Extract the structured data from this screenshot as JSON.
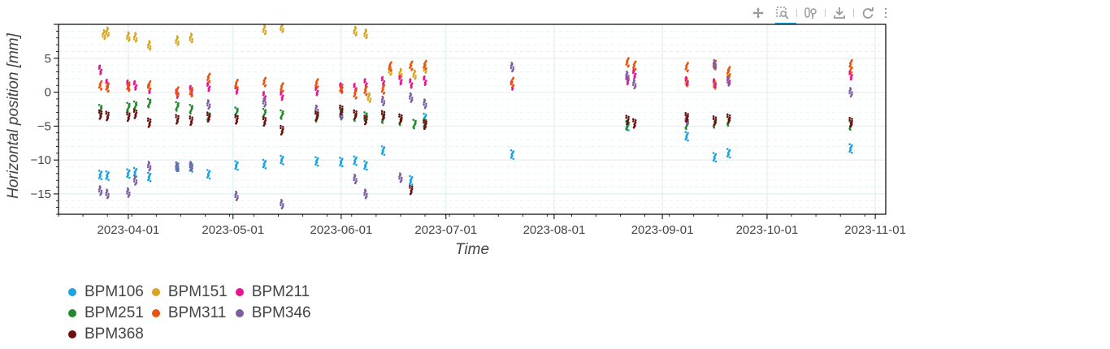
{
  "toolbar": {
    "tools": [
      {
        "name": "pan-tool",
        "icon": "move-icon"
      },
      {
        "name": "box-zoom-tool",
        "icon": "box-zoom-icon",
        "active": true
      },
      {
        "name": "wheel-zoom-tool",
        "icon": "wheel-zoom-icon"
      },
      {
        "name": "save-tool",
        "icon": "download-icon"
      },
      {
        "name": "reset-tool",
        "icon": "reset-icon"
      }
    ],
    "menu_icon": "more-icon"
  },
  "chart_data": {
    "type": "scatter",
    "title": "",
    "xlabel": "Time",
    "ylabel": "Horizontal position [mm]",
    "xlim": [
      "2023-03-12",
      "2023-11-04"
    ],
    "ylim": [
      -18,
      10
    ],
    "x_ticks": [
      "2023-04-01",
      "2023-05-01",
      "2023-06-01",
      "2023-07-01",
      "2023-08-01",
      "2023-09-01",
      "2023-10-01",
      "2023-11-01"
    ],
    "y_ticks": [
      -15,
      -10,
      -5,
      0,
      5
    ],
    "y_tick_labels": [
      "−15",
      "−10",
      "−5",
      "0",
      "5"
    ],
    "grid": true,
    "legend_position": "bottom-left",
    "series": [
      {
        "name": "BPM106",
        "color": "#1ba3df",
        "points": [
          [
            "2023-03-24",
            -12.2
          ],
          [
            "2023-03-26",
            -12.3
          ],
          [
            "2023-04-01",
            -12.0
          ],
          [
            "2023-04-03",
            -11.8
          ],
          [
            "2023-04-07",
            -12.5
          ],
          [
            "2023-04-15",
            -11.0
          ],
          [
            "2023-04-19",
            -11.1
          ],
          [
            "2023-04-24",
            -12.1
          ],
          [
            "2023-05-02",
            -10.8
          ],
          [
            "2023-05-10",
            -10.6
          ],
          [
            "2023-05-15",
            -10.0
          ],
          [
            "2023-05-25",
            -10.2
          ],
          [
            "2023-06-01",
            -10.3
          ],
          [
            "2023-06-05",
            -10.1
          ],
          [
            "2023-06-08",
            -10.8
          ],
          [
            "2023-06-13",
            -8.6
          ],
          [
            "2023-06-21",
            -13.0
          ],
          [
            "2023-06-25",
            -3.8
          ],
          [
            "2023-07-20",
            -9.2
          ],
          [
            "2023-08-22",
            -5.0
          ],
          [
            "2023-09-08",
            -6.5
          ],
          [
            "2023-09-16",
            -9.6
          ],
          [
            "2023-09-20",
            -9.0
          ],
          [
            "2023-10-25",
            -8.3
          ]
        ]
      },
      {
        "name": "BPM151",
        "color": "#d9a521",
        "points": [
          [
            "2023-03-25",
            8.5
          ],
          [
            "2023-03-26",
            8.9
          ],
          [
            "2023-04-01",
            8.2
          ],
          [
            "2023-04-03",
            8.1
          ],
          [
            "2023-04-07",
            6.9
          ],
          [
            "2023-04-15",
            7.6
          ],
          [
            "2023-04-19",
            8.0
          ],
          [
            "2023-05-10",
            9.2
          ],
          [
            "2023-05-15",
            9.5
          ],
          [
            "2023-06-05",
            9.0
          ],
          [
            "2023-06-08",
            8.6
          ],
          [
            "2023-06-09",
            -0.8
          ],
          [
            "2023-06-15",
            3.2
          ],
          [
            "2023-06-18",
            2.8
          ],
          [
            "2023-06-22",
            2.6
          ],
          [
            "2023-06-25",
            3.5
          ],
          [
            "2023-09-08",
            1.5
          ],
          [
            "2023-09-16",
            1.1
          ],
          [
            "2023-09-20",
            2.8
          ],
          [
            "2023-10-25",
            3.1
          ]
        ]
      },
      {
        "name": "BPM211",
        "color": "#e8158e",
        "points": [
          [
            "2023-03-24",
            3.3
          ],
          [
            "2023-03-26",
            1.2
          ],
          [
            "2023-04-01",
            1.1
          ],
          [
            "2023-04-03",
            1.0
          ],
          [
            "2023-04-07",
            0.5
          ],
          [
            "2023-04-15",
            -0.2
          ],
          [
            "2023-04-19",
            0.3
          ],
          [
            "2023-04-24",
            0.8
          ],
          [
            "2023-05-02",
            0.4
          ],
          [
            "2023-05-10",
            -0.6
          ],
          [
            "2023-05-15",
            -0.5
          ],
          [
            "2023-05-25",
            0.2
          ],
          [
            "2023-06-01",
            0.7
          ],
          [
            "2023-06-05",
            0.6
          ],
          [
            "2023-06-08",
            1.3
          ],
          [
            "2023-06-13",
            1.6
          ],
          [
            "2023-06-18",
            1.8
          ],
          [
            "2023-06-21",
            1.3
          ],
          [
            "2023-06-25",
            1.7
          ],
          [
            "2023-07-20",
            1.0
          ],
          [
            "2023-08-22",
            1.8
          ],
          [
            "2023-08-24",
            2.7
          ],
          [
            "2023-09-08",
            1.6
          ],
          [
            "2023-09-16",
            1.3
          ],
          [
            "2023-09-20",
            1.7
          ],
          [
            "2023-10-25",
            2.5
          ]
        ]
      },
      {
        "name": "BPM251",
        "color": "#23882f",
        "points": [
          [
            "2023-03-24",
            -2.5
          ],
          [
            "2023-04-01",
            -2.2
          ],
          [
            "2023-04-03",
            -2.0
          ],
          [
            "2023-04-07",
            -1.6
          ],
          [
            "2023-04-15",
            -2.1
          ],
          [
            "2023-04-19",
            -2.5
          ],
          [
            "2023-04-24",
            -3.6
          ],
          [
            "2023-05-02",
            -2.9
          ],
          [
            "2023-05-10",
            -3.1
          ],
          [
            "2023-05-15",
            -3.3
          ],
          [
            "2023-05-25",
            -3.7
          ],
          [
            "2023-06-01",
            -3.1
          ],
          [
            "2023-06-05",
            -3.6
          ],
          [
            "2023-06-08",
            -3.6
          ],
          [
            "2023-06-13",
            -3.9
          ],
          [
            "2023-06-18",
            -4.2
          ],
          [
            "2023-06-22",
            -4.7
          ],
          [
            "2023-06-25",
            -4.6
          ],
          [
            "2023-08-22",
            -4.9
          ],
          [
            "2023-09-08",
            -4.8
          ],
          [
            "2023-09-16",
            -4.6
          ],
          [
            "2023-09-20",
            -4.3
          ],
          [
            "2023-10-25",
            -4.9
          ]
        ]
      },
      {
        "name": "BPM311",
        "color": "#ea540f",
        "points": [
          [
            "2023-03-24",
            1.0
          ],
          [
            "2023-03-26",
            0.7
          ],
          [
            "2023-04-01",
            0.8
          ],
          [
            "2023-04-07",
            1.0
          ],
          [
            "2023-04-15",
            0.1
          ],
          [
            "2023-04-19",
            0.0
          ],
          [
            "2023-04-24",
            2.1
          ],
          [
            "2023-05-02",
            1.2
          ],
          [
            "2023-05-10",
            1.5
          ],
          [
            "2023-05-15",
            0.7
          ],
          [
            "2023-05-25",
            1.3
          ],
          [
            "2023-06-01",
            0.5
          ],
          [
            "2023-06-05",
            -0.3
          ],
          [
            "2023-06-08",
            0.2
          ],
          [
            "2023-06-13",
            0.4
          ],
          [
            "2023-06-15",
            3.8
          ],
          [
            "2023-06-21",
            3.9
          ],
          [
            "2023-06-25",
            4.0
          ],
          [
            "2023-07-20",
            1.5
          ],
          [
            "2023-08-22",
            4.4
          ],
          [
            "2023-08-24",
            3.9
          ],
          [
            "2023-09-08",
            3.7
          ],
          [
            "2023-09-16",
            4.0
          ],
          [
            "2023-09-20",
            3.1
          ],
          [
            "2023-10-25",
            4.1
          ]
        ]
      },
      {
        "name": "BPM346",
        "color": "#7d5ea0",
        "points": [
          [
            "2023-03-24",
            -14.5
          ],
          [
            "2023-03-26",
            -15.0
          ],
          [
            "2023-04-01",
            -14.8
          ],
          [
            "2023-04-03",
            -13.0
          ],
          [
            "2023-04-07",
            -10.9
          ],
          [
            "2023-04-15",
            -11.0
          ],
          [
            "2023-04-19",
            -10.9
          ],
          [
            "2023-04-24",
            -1.8
          ],
          [
            "2023-05-02",
            -15.3
          ],
          [
            "2023-05-10",
            -1.5
          ],
          [
            "2023-05-15",
            -16.5
          ],
          [
            "2023-05-25",
            -2.6
          ],
          [
            "2023-06-01",
            -3.4
          ],
          [
            "2023-06-05",
            -12.8
          ],
          [
            "2023-06-08",
            -15.0
          ],
          [
            "2023-06-13",
            -1.3
          ],
          [
            "2023-06-18",
            -12.6
          ],
          [
            "2023-06-21",
            -0.8
          ],
          [
            "2023-06-25",
            -1.7
          ],
          [
            "2023-07-20",
            3.7
          ],
          [
            "2023-08-22",
            2.4
          ],
          [
            "2023-08-24",
            1.2
          ],
          [
            "2023-09-08",
            -4.1
          ],
          [
            "2023-09-16",
            4.1
          ],
          [
            "2023-09-20",
            1.6
          ],
          [
            "2023-10-25",
            0.0
          ]
        ]
      },
      {
        "name": "BPM368",
        "color": "#6b0f0f",
        "points": [
          [
            "2023-03-24",
            -3.3
          ],
          [
            "2023-03-26",
            -3.5
          ],
          [
            "2023-04-01",
            -3.6
          ],
          [
            "2023-04-03",
            -3.2
          ],
          [
            "2023-04-07",
            -4.5
          ],
          [
            "2023-04-15",
            -4.0
          ],
          [
            "2023-04-19",
            -4.2
          ],
          [
            "2023-04-24",
            -3.7
          ],
          [
            "2023-05-02",
            -4.0
          ],
          [
            "2023-05-10",
            -4.3
          ],
          [
            "2023-05-15",
            -5.6
          ],
          [
            "2023-05-25",
            -3.5
          ],
          [
            "2023-06-01",
            -2.6
          ],
          [
            "2023-06-05",
            -3.3
          ],
          [
            "2023-06-08",
            -4.1
          ],
          [
            "2023-06-13",
            -3.4
          ],
          [
            "2023-06-18",
            -3.9
          ],
          [
            "2023-06-21",
            -14.4
          ],
          [
            "2023-06-25",
            -4.8
          ],
          [
            "2023-08-22",
            -4.1
          ],
          [
            "2023-08-24",
            -4.6
          ],
          [
            "2023-09-08",
            -3.7
          ],
          [
            "2023-09-16",
            -4.2
          ],
          [
            "2023-09-20",
            -3.9
          ],
          [
            "2023-10-25",
            -4.4
          ]
        ]
      }
    ]
  }
}
